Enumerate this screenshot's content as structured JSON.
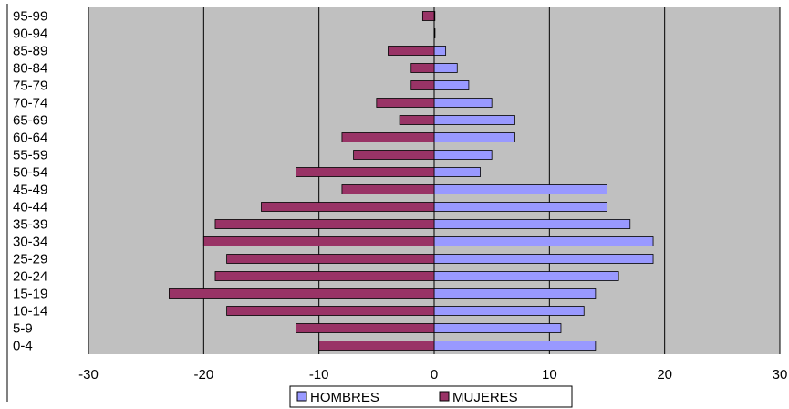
{
  "chart_data": {
    "type": "bar",
    "orientation": "horizontal",
    "stacking": "diverging",
    "categories": [
      "0-4",
      "5-9",
      "10-14",
      "15-19",
      "20-24",
      "25-29",
      "30-34",
      "35-39",
      "40-44",
      "45-49",
      "50-54",
      "55-59",
      "60-64",
      "65-69",
      "70-74",
      "75-79",
      "80-84",
      "85-89",
      "90-94",
      "95-99"
    ],
    "series": [
      {
        "name": "HOMBRES",
        "color": "#9999ff",
        "values": [
          14,
          11,
          13,
          14,
          16,
          19,
          19,
          17,
          15,
          15,
          4,
          5,
          7,
          7,
          5,
          3,
          2,
          1,
          0,
          0
        ]
      },
      {
        "name": "MUJERES",
        "color": "#993366",
        "values": [
          -10,
          -12,
          -18,
          -23,
          -19,
          -18,
          -20,
          -19,
          -15,
          -8,
          -12,
          -7,
          -8,
          -3,
          -5,
          -2,
          -2,
          -4,
          0,
          -1
        ]
      }
    ],
    "xlim": [
      -30,
      30
    ],
    "xticks": [
      "-30",
      "-20",
      "-10",
      "0",
      "10",
      "20",
      "30"
    ],
    "title": "",
    "xlabel": "",
    "ylabel": "",
    "grid": "vertical",
    "plot_background": "#c0c0c0",
    "legend_position": "bottom-center"
  }
}
